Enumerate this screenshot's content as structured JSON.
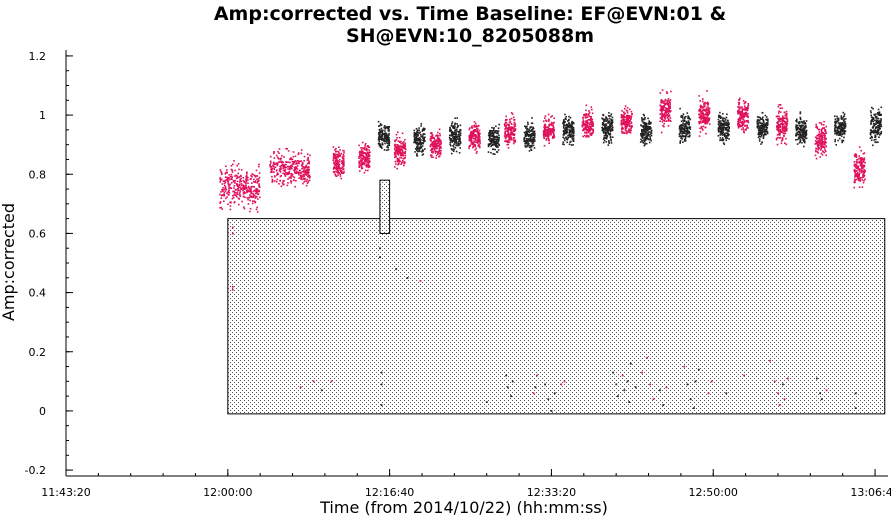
{
  "chart_data": {
    "type": "scatter",
    "title_line1": "Amp:corrected vs. Time Baseline: EF@EVN:01 &",
    "title_line2": "SH@EVN:10_8205088m",
    "xlabel": "Time (from 2014/10/22) (hh:mm:ss)",
    "ylabel": "Amp:corrected",
    "x_ticks": [
      "11:43:20",
      "12:00:00",
      "12:16:40",
      "12:33:20",
      "12:50:00",
      "13:06:40"
    ],
    "y_ticks": [
      "-0.2",
      "0",
      "0.2",
      "0.4",
      "0.6",
      "0.8",
      "1",
      "1.2"
    ],
    "ylim": [
      -0.2,
      1.2
    ],
    "grid": false,
    "colors": {
      "pink": "#e0105a",
      "black": "#222222"
    },
    "scans": [
      {
        "t": "12:01:10",
        "color": "pink",
        "center": 0.76,
        "spread": 0.06
      },
      {
        "t": "12:06:20",
        "color": "pink",
        "center": 0.82,
        "spread": 0.05
      },
      {
        "t": "12:11:20",
        "color": "pink",
        "center": 0.84,
        "spread": 0.04
      },
      {
        "t": "12:14:00",
        "color": "pink",
        "center": 0.86,
        "spread": 0.04
      },
      {
        "t": "12:16:00",
        "color": "black",
        "center": 0.93,
        "spread": 0.04
      },
      {
        "t": "12:17:40",
        "color": "pink",
        "center": 0.88,
        "spread": 0.04
      },
      {
        "t": "12:19:40",
        "color": "black",
        "center": 0.92,
        "spread": 0.04
      },
      {
        "t": "12:21:20",
        "color": "pink",
        "center": 0.9,
        "spread": 0.04
      },
      {
        "t": "12:23:20",
        "color": "black",
        "center": 0.93,
        "spread": 0.04
      },
      {
        "t": "12:25:20",
        "color": "pink",
        "center": 0.93,
        "spread": 0.04
      },
      {
        "t": "12:27:20",
        "color": "black",
        "center": 0.92,
        "spread": 0.04
      },
      {
        "t": "12:29:00",
        "color": "pink",
        "center": 0.95,
        "spread": 0.04
      },
      {
        "t": "12:31:00",
        "color": "black",
        "center": 0.93,
        "spread": 0.04
      },
      {
        "t": "12:33:00",
        "color": "pink",
        "center": 0.95,
        "spread": 0.04
      },
      {
        "t": "12:35:00",
        "color": "black",
        "center": 0.95,
        "spread": 0.04
      },
      {
        "t": "12:37:00",
        "color": "pink",
        "center": 0.97,
        "spread": 0.04
      },
      {
        "t": "12:39:00",
        "color": "black",
        "center": 0.96,
        "spread": 0.04
      },
      {
        "t": "12:41:00",
        "color": "pink",
        "center": 0.98,
        "spread": 0.04
      },
      {
        "t": "12:43:00",
        "color": "black",
        "center": 0.95,
        "spread": 0.04
      },
      {
        "t": "12:45:00",
        "color": "pink",
        "center": 1.02,
        "spread": 0.05
      },
      {
        "t": "12:47:00",
        "color": "black",
        "center": 0.96,
        "spread": 0.04
      },
      {
        "t": "12:49:00",
        "color": "pink",
        "center": 1.0,
        "spread": 0.05
      },
      {
        "t": "12:51:00",
        "color": "black",
        "center": 0.96,
        "spread": 0.04
      },
      {
        "t": "12:53:00",
        "color": "pink",
        "center": 1.0,
        "spread": 0.05
      },
      {
        "t": "12:55:00",
        "color": "black",
        "center": 0.96,
        "spread": 0.04
      },
      {
        "t": "12:57:00",
        "color": "pink",
        "center": 0.97,
        "spread": 0.05
      },
      {
        "t": "12:59:00",
        "color": "black",
        "center": 0.95,
        "spread": 0.04
      },
      {
        "t": "13:01:00",
        "color": "pink",
        "center": 0.92,
        "spread": 0.05
      },
      {
        "t": "13:03:00",
        "color": "black",
        "center": 0.96,
        "spread": 0.04
      },
      {
        "t": "13:05:00",
        "color": "pink",
        "center": 0.82,
        "spread": 0.05
      },
      {
        "t": "13:06:40",
        "color": "black",
        "center": 0.97,
        "spread": 0.05
      }
    ],
    "flagged_region": {
      "t_start": "12:00:00",
      "t_end": "13:07:40",
      "y_min": -0.01,
      "y_max": 0.65
    },
    "flagged_small_box": {
      "t_start": "12:15:40",
      "t_end": "12:16:40",
      "y_min": 0.6,
      "y_max": 0.78
    },
    "low_points": [
      {
        "t": "12:00:30",
        "y": 0.62,
        "color": "pink"
      },
      {
        "t": "12:00:30",
        "y": 0.6,
        "color": "pink"
      },
      {
        "t": "12:00:30",
        "y": 0.42,
        "color": "pink"
      },
      {
        "t": "12:00:30",
        "y": 0.41,
        "color": "pink"
      },
      {
        "t": "12:07:30",
        "y": 0.08,
        "color": "pink"
      },
      {
        "t": "12:08:50",
        "y": 0.1,
        "color": "pink"
      },
      {
        "t": "12:09:40",
        "y": 0.07,
        "color": "black"
      },
      {
        "t": "12:10:40",
        "y": 0.1,
        "color": "pink"
      },
      {
        "t": "12:15:40",
        "y": 0.55,
        "color": "black"
      },
      {
        "t": "12:15:40",
        "y": 0.52,
        "color": "black"
      },
      {
        "t": "12:15:50",
        "y": 0.13,
        "color": "black"
      },
      {
        "t": "12:15:50",
        "y": 0.09,
        "color": "black"
      },
      {
        "t": "12:15:50",
        "y": 0.02,
        "color": "black"
      },
      {
        "t": "12:17:20",
        "y": 0.48,
        "color": "black"
      },
      {
        "t": "12:18:30",
        "y": 0.45,
        "color": "black"
      },
      {
        "t": "12:19:50",
        "y": 0.44,
        "color": "pink"
      },
      {
        "t": "12:26:40",
        "y": 0.03,
        "color": "black"
      },
      {
        "t": "12:28:40",
        "y": 0.12,
        "color": "black"
      },
      {
        "t": "12:28:50",
        "y": 0.08,
        "color": "black"
      },
      {
        "t": "12:29:10",
        "y": 0.05,
        "color": "black"
      },
      {
        "t": "12:29:20",
        "y": 0.1,
        "color": "black"
      },
      {
        "t": "12:31:30",
        "y": 0.06,
        "color": "pink"
      },
      {
        "t": "12:31:40",
        "y": 0.08,
        "color": "black"
      },
      {
        "t": "12:31:50",
        "y": 0.12,
        "color": "pink"
      },
      {
        "t": "12:32:40",
        "y": 0.09,
        "color": "black"
      },
      {
        "t": "12:33:00",
        "y": 0.04,
        "color": "black"
      },
      {
        "t": "12:33:20",
        "y": 0.0,
        "color": "black"
      },
      {
        "t": "12:33:40",
        "y": 0.06,
        "color": "black"
      },
      {
        "t": "12:34:20",
        "y": 0.09,
        "color": "pink"
      },
      {
        "t": "12:34:40",
        "y": 0.1,
        "color": "pink"
      },
      {
        "t": "12:39:40",
        "y": 0.13,
        "color": "black"
      },
      {
        "t": "12:40:00",
        "y": 0.09,
        "color": "black"
      },
      {
        "t": "12:40:10",
        "y": 0.05,
        "color": "black"
      },
      {
        "t": "12:40:40",
        "y": 0.12,
        "color": "pink"
      },
      {
        "t": "12:40:50",
        "y": 0.07,
        "color": "black"
      },
      {
        "t": "12:41:10",
        "y": 0.1,
        "color": "black"
      },
      {
        "t": "12:41:20",
        "y": 0.03,
        "color": "black"
      },
      {
        "t": "12:41:30",
        "y": 0.16,
        "color": "black"
      },
      {
        "t": "12:42:00",
        "y": 0.08,
        "color": "black"
      },
      {
        "t": "12:42:40",
        "y": 0.13,
        "color": "pink"
      },
      {
        "t": "12:43:10",
        "y": 0.18,
        "color": "pink"
      },
      {
        "t": "12:43:30",
        "y": 0.09,
        "color": "pink"
      },
      {
        "t": "12:43:50",
        "y": 0.04,
        "color": "pink"
      },
      {
        "t": "12:44:30",
        "y": 0.07,
        "color": "black"
      },
      {
        "t": "12:44:50",
        "y": 0.02,
        "color": "black"
      },
      {
        "t": "12:45:10",
        "y": 0.08,
        "color": "pink"
      },
      {
        "t": "12:47:00",
        "y": 0.15,
        "color": "pink"
      },
      {
        "t": "12:47:20",
        "y": 0.09,
        "color": "black"
      },
      {
        "t": "12:47:40",
        "y": 0.04,
        "color": "black"
      },
      {
        "t": "12:48:00",
        "y": 0.01,
        "color": "black"
      },
      {
        "t": "12:48:10",
        "y": 0.1,
        "color": "black"
      },
      {
        "t": "12:48:30",
        "y": 0.14,
        "color": "black"
      },
      {
        "t": "12:49:30",
        "y": 0.06,
        "color": "pink"
      },
      {
        "t": "12:49:50",
        "y": 0.1,
        "color": "pink"
      },
      {
        "t": "12:51:20",
        "y": 0.06,
        "color": "black"
      },
      {
        "t": "12:53:10",
        "y": 0.12,
        "color": "pink"
      },
      {
        "t": "12:55:50",
        "y": 0.17,
        "color": "pink"
      },
      {
        "t": "12:56:20",
        "y": 0.1,
        "color": "pink"
      },
      {
        "t": "12:56:40",
        "y": 0.06,
        "color": "pink"
      },
      {
        "t": "12:56:50",
        "y": 0.02,
        "color": "pink"
      },
      {
        "t": "12:57:10",
        "y": 0.09,
        "color": "black"
      },
      {
        "t": "12:57:20",
        "y": 0.04,
        "color": "pink"
      },
      {
        "t": "12:57:40",
        "y": 0.11,
        "color": "pink"
      },
      {
        "t": "13:00:40",
        "y": 0.11,
        "color": "black"
      },
      {
        "t": "13:01:00",
        "y": 0.06,
        "color": "black"
      },
      {
        "t": "13:01:10",
        "y": 0.04,
        "color": "black"
      },
      {
        "t": "13:01:40",
        "y": 0.07,
        "color": "pink"
      },
      {
        "t": "13:04:40",
        "y": 0.06,
        "color": "black"
      },
      {
        "t": "13:04:40",
        "y": 0.01,
        "color": "black"
      }
    ]
  }
}
